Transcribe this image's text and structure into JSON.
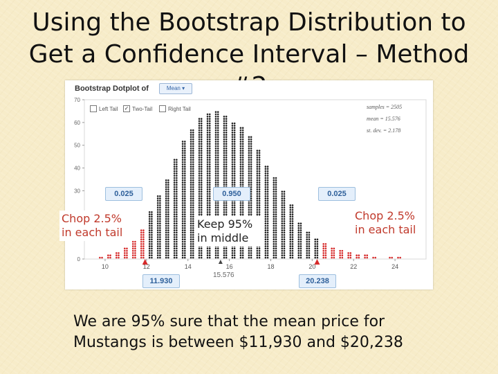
{
  "slide": {
    "title": "Using the Bootstrap Distribution to Get a Confidence Interval – Method #2",
    "conclusion": "We are 95% sure that the mean price for Mustangs is between $11,930 and $20,238"
  },
  "callouts": {
    "left": "Chop 2.5% in each tail",
    "middle": "Keep 95% in middle",
    "right": "Chop 2.5% in each tail"
  },
  "panel": {
    "heading": "Bootstrap Dotplot of",
    "statistic": "Mean",
    "tail_options": [
      {
        "label": "Left Tail",
        "checked": false
      },
      {
        "label": "Two-Tail",
        "checked": true
      },
      {
        "label": "Right Tail",
        "checked": false
      }
    ],
    "stats": [
      "samples = 2505",
      "mean = 15.576",
      "st. dev. = 2.178"
    ]
  },
  "chart_data": {
    "type": "scatter",
    "x_ticks": [
      10,
      12,
      14,
      16,
      18,
      20,
      22,
      24
    ],
    "y_ticks": [
      0,
      10,
      20,
      30,
      40,
      50,
      60,
      70
    ],
    "xlim": [
      9,
      25.5
    ],
    "ylim": [
      0,
      70
    ],
    "center_value": "15.576",
    "tail_proportions": {
      "left": "0.025",
      "middle": "0.950",
      "right": "0.025"
    },
    "bounds": {
      "lower": "11.930",
      "upper": "20.238"
    },
    "lower_bound": 11.93,
    "upper_bound": 20.238,
    "colors": {
      "tail": "#d62b2b",
      "middle": "#222222",
      "marker": "#d62b2b"
    },
    "distribution": {
      "x": [
        9.8,
        10.2,
        10.6,
        11.0,
        11.4,
        11.8,
        12.2,
        12.6,
        13.0,
        13.4,
        13.8,
        14.2,
        14.6,
        15.0,
        15.4,
        15.8,
        16.2,
        16.6,
        17.0,
        17.4,
        17.8,
        18.2,
        18.6,
        19.0,
        19.4,
        19.8,
        20.2,
        20.6,
        21.0,
        21.4,
        21.8,
        22.2,
        22.6,
        23.0,
        23.4,
        23.8,
        24.2
      ],
      "counts": [
        1,
        2,
        3,
        5,
        8,
        13,
        21,
        28,
        35,
        44,
        52,
        57,
        62,
        64,
        65,
        63,
        60,
        58,
        54,
        48,
        41,
        36,
        30,
        24,
        16,
        12,
        9,
        7,
        5,
        4,
        3,
        2,
        2,
        1,
        0,
        1,
        1
      ]
    }
  }
}
